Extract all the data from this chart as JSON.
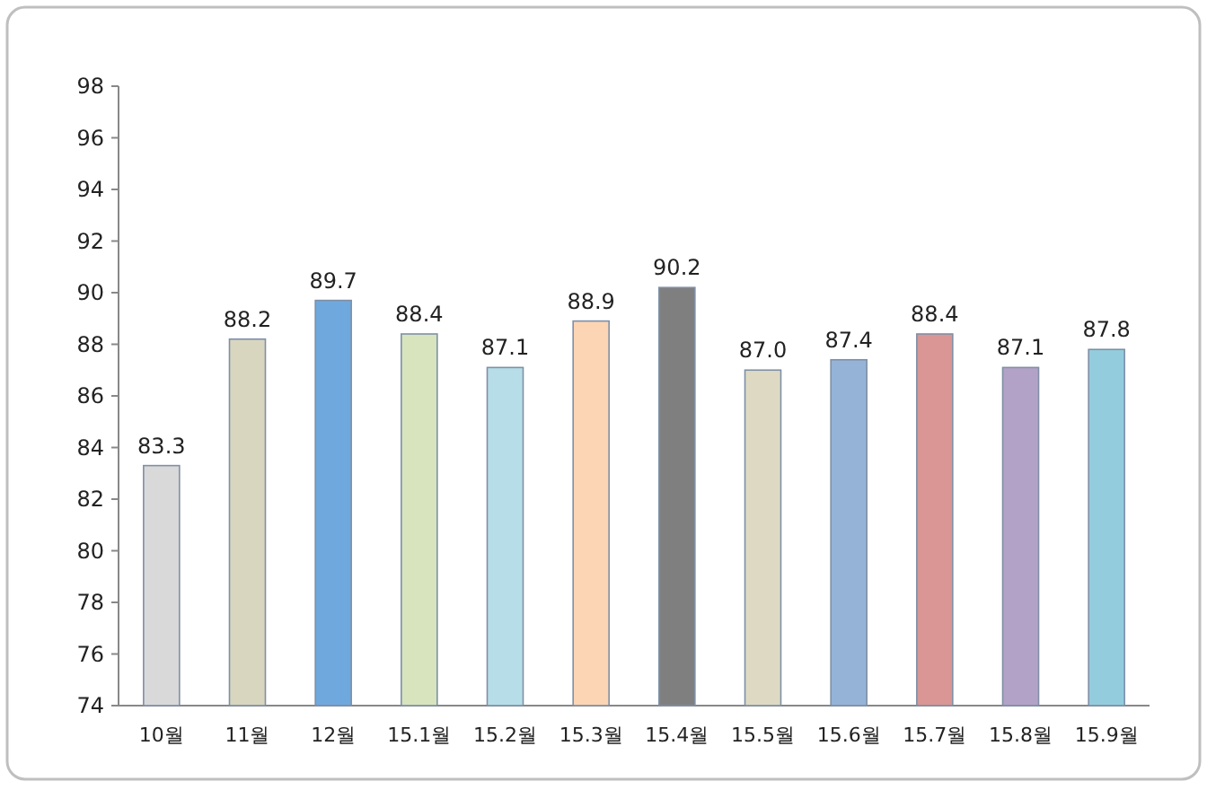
{
  "chart_data": {
    "type": "bar",
    "categories": [
      "10월",
      "11월",
      "12월",
      "15.1월",
      "15.2월",
      "15.3월",
      "15.4월",
      "15.5월",
      "15.6월",
      "15.7월",
      "15.8월",
      "15.9월"
    ],
    "values": [
      83.3,
      88.2,
      89.7,
      88.4,
      87.1,
      88.9,
      90.2,
      87.0,
      87.4,
      88.4,
      87.1,
      87.8
    ],
    "value_labels": [
      "83.3",
      "88.2",
      "89.7",
      "88.4",
      "87.1",
      "88.9",
      "90.2",
      "87.0",
      "87.4",
      "88.4",
      "87.1",
      "87.8"
    ],
    "colors": [
      "#d9d9d9",
      "#d8d6bf",
      "#6fa8dc",
      "#d7e4bd",
      "#b7dee8",
      "#fcd5b5",
      "#7f7f7f",
      "#ddd9c3",
      "#95b3d7",
      "#d99694",
      "#b3a2c7",
      "#93cddd"
    ],
    "ylim": [
      74,
      98
    ],
    "yticks": [
      74,
      76,
      78,
      80,
      82,
      84,
      86,
      88,
      90,
      92,
      94,
      96,
      98
    ],
    "grid": false
  }
}
